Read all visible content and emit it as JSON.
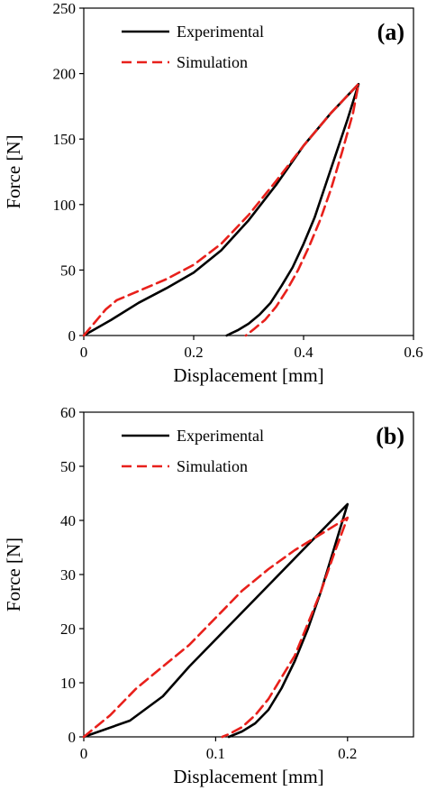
{
  "chart_data": [
    {
      "type": "line",
      "panel_label": "(a)",
      "xlabel": "Displacement [mm]",
      "ylabel": "Force [N]",
      "xlim": [
        0,
        0.6
      ],
      "ylim": [
        0,
        250
      ],
      "x_ticks": [
        0,
        0.2,
        0.4,
        0.6
      ],
      "x_tick_labels": [
        "0",
        "0.2",
        "0.4",
        "0.6"
      ],
      "y_ticks": [
        0,
        50,
        100,
        150,
        200,
        250
      ],
      "y_tick_labels": [
        "0",
        "50",
        "100",
        "150",
        "200",
        "250"
      ],
      "grid": false,
      "legend": "top-left",
      "series": [
        {
          "name": "Experimental",
          "color": "#000000",
          "dash": "solid",
          "points": [
            [
              0,
              0
            ],
            [
              0.05,
              12
            ],
            [
              0.1,
              25
            ],
            [
              0.15,
              36
            ],
            [
              0.2,
              48
            ],
            [
              0.25,
              65
            ],
            [
              0.3,
              88
            ],
            [
              0.35,
              115
            ],
            [
              0.4,
              145
            ],
            [
              0.45,
              170
            ],
            [
              0.5,
              192
            ],
            [
              0.48,
              165
            ],
            [
              0.46,
              140
            ],
            [
              0.44,
              115
            ],
            [
              0.42,
              90
            ],
            [
              0.4,
              70
            ],
            [
              0.38,
              52
            ],
            [
              0.36,
              38
            ],
            [
              0.34,
              25
            ],
            [
              0.32,
              16
            ],
            [
              0.3,
              9
            ],
            [
              0.28,
              4
            ],
            [
              0.26,
              0
            ]
          ]
        },
        {
          "name": "Simulation",
          "color": "#e8201b",
          "dash": "dashed",
          "points": [
            [
              0,
              0
            ],
            [
              0.02,
              10
            ],
            [
              0.04,
              20
            ],
            [
              0.06,
              27
            ],
            [
              0.1,
              34
            ],
            [
              0.15,
              43
            ],
            [
              0.2,
              54
            ],
            [
              0.25,
              70
            ],
            [
              0.3,
              92
            ],
            [
              0.35,
              118
            ],
            [
              0.4,
              145
            ],
            [
              0.45,
              170
            ],
            [
              0.5,
              192
            ],
            [
              0.49,
              170
            ],
            [
              0.47,
              140
            ],
            [
              0.45,
              112
            ],
            [
              0.43,
              88
            ],
            [
              0.41,
              68
            ],
            [
              0.39,
              50
            ],
            [
              0.37,
              35
            ],
            [
              0.35,
              22
            ],
            [
              0.33,
              12
            ],
            [
              0.31,
              5
            ],
            [
              0.295,
              0
            ]
          ]
        }
      ]
    },
    {
      "type": "line",
      "panel_label": "(b)",
      "xlabel": "Displacement [mm]",
      "ylabel": "Force [N]",
      "xlim": [
        0,
        0.25
      ],
      "ylim": [
        0,
        60
      ],
      "x_ticks": [
        0,
        0.1,
        0.2
      ],
      "x_tick_labels": [
        "0",
        "0.1",
        "0.2"
      ],
      "y_ticks": [
        0,
        10,
        20,
        30,
        40,
        50,
        60
      ],
      "y_tick_labels": [
        "0",
        "10",
        "20",
        "30",
        "40",
        "50",
        "60"
      ],
      "grid": false,
      "legend": "top-left",
      "series": [
        {
          "name": "Experimental",
          "color": "#000000",
          "dash": "solid",
          "points": [
            [
              0,
              0
            ],
            [
              0.035,
              3
            ],
            [
              0.06,
              7.5
            ],
            [
              0.08,
              13
            ],
            [
              0.1,
              18
            ],
            [
              0.12,
              23
            ],
            [
              0.14,
              28
            ],
            [
              0.16,
              33
            ],
            [
              0.18,
              38
            ],
            [
              0.2,
              43
            ],
            [
              0.19,
              35
            ],
            [
              0.18,
              27
            ],
            [
              0.17,
              20
            ],
            [
              0.16,
              14
            ],
            [
              0.15,
              9
            ],
            [
              0.14,
              5
            ],
            [
              0.13,
              2.5
            ],
            [
              0.12,
              1
            ],
            [
              0.11,
              0
            ]
          ]
        },
        {
          "name": "Simulation",
          "color": "#e8201b",
          "dash": "dashed",
          "points": [
            [
              0,
              0
            ],
            [
              0.02,
              4
            ],
            [
              0.04,
              9
            ],
            [
              0.06,
              13
            ],
            [
              0.08,
              17
            ],
            [
              0.1,
              22
            ],
            [
              0.12,
              27
            ],
            [
              0.14,
              31
            ],
            [
              0.16,
              34.5
            ],
            [
              0.18,
              37.5
            ],
            [
              0.2,
              40.5
            ],
            [
              0.19,
              34
            ],
            [
              0.18,
              27
            ],
            [
              0.17,
              21
            ],
            [
              0.16,
              15
            ],
            [
              0.15,
              11
            ],
            [
              0.14,
              7
            ],
            [
              0.13,
              4
            ],
            [
              0.12,
              1.8
            ],
            [
              0.11,
              0.5
            ],
            [
              0.105,
              0
            ]
          ]
        }
      ]
    }
  ]
}
